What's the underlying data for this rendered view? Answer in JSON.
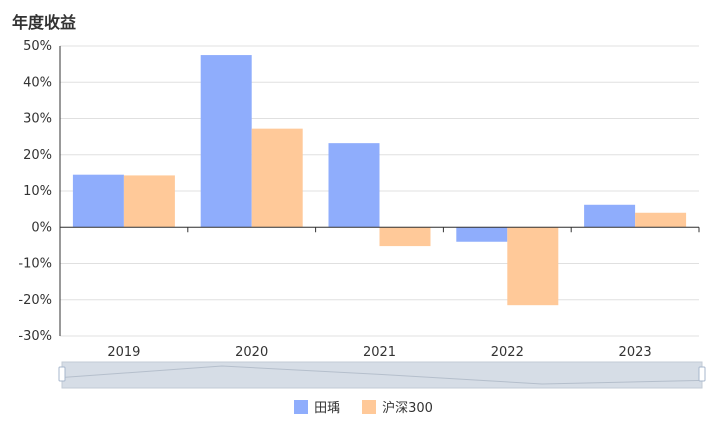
{
  "title": "年度收益",
  "colors": {
    "series0": "#8fadfc",
    "series1": "#ffc999"
  },
  "chart_data": {
    "type": "bar",
    "title": "年度收益",
    "categories": [
      "2019",
      "2020",
      "2021",
      "2022",
      "2023"
    ],
    "series": [
      {
        "name": "田瑀",
        "values": [
          14.5,
          47.5,
          23.2,
          -4.0,
          6.2
        ]
      },
      {
        "name": "沪深300",
        "values": [
          14.3,
          27.2,
          -5.2,
          -21.5,
          4.0
        ]
      }
    ],
    "ylim": [
      -30,
      50
    ],
    "yticks": [
      "-30%",
      "-20%",
      "-10%",
      "0%",
      "10%",
      "20%",
      "30%",
      "40%",
      "50%"
    ],
    "grid": true,
    "legend": "bottom",
    "xlabel": "",
    "ylabel": ""
  },
  "data_zoom": {
    "range": "full",
    "preview_values": [
      14.5,
      47.5,
      23.2,
      -4.0,
      6.2
    ]
  }
}
